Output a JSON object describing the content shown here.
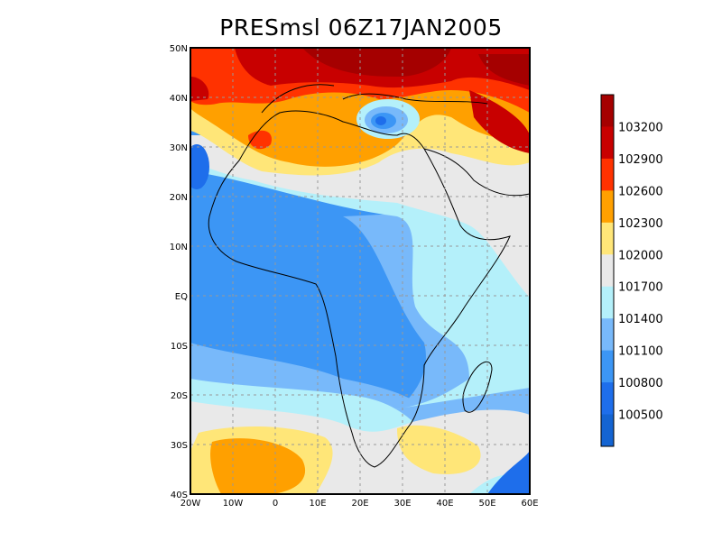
{
  "title": "PRESmsl 06Z17JAN2005",
  "map": {
    "variable": "PRESmsl",
    "lon_range": [
      -20,
      60
    ],
    "lat_range": [
      -40,
      50
    ],
    "grid": true,
    "x_ticks": [
      "20W",
      "10W",
      "0",
      "10E",
      "20E",
      "30E",
      "40E",
      "50E",
      "60E"
    ],
    "y_ticks": [
      "50N",
      "40N",
      "30N",
      "20N",
      "10N",
      "EQ",
      "10S",
      "20S",
      "30S",
      "40S"
    ]
  },
  "colorbar": {
    "labels": [
      "103200",
      "102900",
      "102600",
      "102300",
      "102000",
      "101700",
      "101400",
      "101100",
      "100800",
      "100500"
    ],
    "colors": [
      "#a50000",
      "#c80000",
      "#ff3200",
      "#ffa000",
      "#ffe678",
      "#e9e9e9",
      "#b4f0fa",
      "#78b9fa",
      "#3c96f5",
      "#1e6eeb",
      "#1464d2"
    ]
  }
}
